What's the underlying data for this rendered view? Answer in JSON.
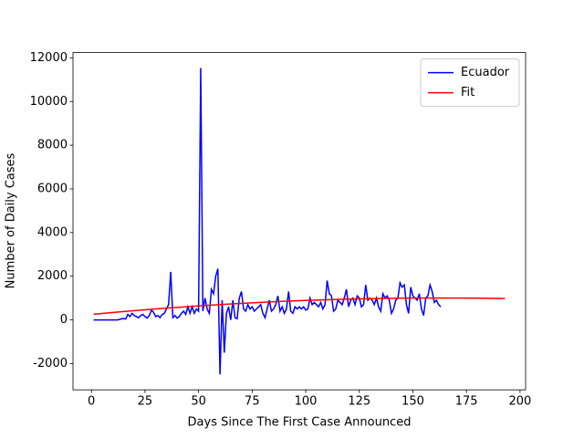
{
  "chart_data": {
    "type": "line",
    "xlabel": "Days Since The First Case Announced",
    "ylabel": "Number of Daily Cases",
    "xlim": [
      -8.6,
      202.6
    ],
    "ylim": [
      -3202,
      12242
    ],
    "xticks": [
      0,
      25,
      50,
      75,
      100,
      125,
      150,
      175,
      200
    ],
    "yticks": [
      -2000,
      0,
      2000,
      4000,
      6000,
      8000,
      10000,
      12000
    ],
    "legend": "upper right",
    "series": [
      {
        "name": "Ecuador",
        "color": "#0000ff",
        "x": [
          1,
          2,
          3,
          4,
          5,
          6,
          7,
          8,
          9,
          10,
          11,
          12,
          13,
          14,
          15,
          16,
          17,
          18,
          19,
          20,
          21,
          22,
          23,
          24,
          25,
          26,
          27,
          28,
          29,
          30,
          31,
          32,
          33,
          34,
          35,
          36,
          37,
          38,
          39,
          40,
          41,
          42,
          43,
          44,
          45,
          46,
          47,
          48,
          49,
          50,
          51,
          52,
          53,
          54,
          55,
          56,
          57,
          58,
          59,
          60,
          61,
          62,
          63,
          64,
          65,
          66,
          67,
          68,
          69,
          70,
          71,
          72,
          73,
          74,
          75,
          76,
          77,
          78,
          79,
          80,
          81,
          82,
          83,
          84,
          85,
          86,
          87,
          88,
          89,
          90,
          91,
          92,
          93,
          94,
          95,
          96,
          97,
          98,
          99,
          100,
          101,
          102,
          103,
          104,
          105,
          106,
          107,
          108,
          109,
          110,
          111,
          112,
          113,
          114,
          115,
          116,
          117,
          118,
          119,
          120,
          121,
          122,
          123,
          124,
          125,
          126,
          127,
          128,
          129,
          130,
          131,
          132,
          133,
          134,
          135,
          136,
          137,
          138,
          139,
          140,
          141,
          142,
          143,
          144,
          145,
          146,
          147,
          148,
          149,
          150,
          151,
          152,
          153,
          154,
          155,
          156,
          157,
          158,
          159,
          160,
          161,
          162,
          163
        ],
        "values": [
          0,
          0,
          0,
          0,
          0,
          0,
          0,
          0,
          0,
          0,
          0,
          0,
          20,
          50,
          60,
          40,
          250,
          150,
          300,
          200,
          150,
          100,
          200,
          250,
          150,
          80,
          200,
          450,
          350,
          150,
          200,
          100,
          250,
          300,
          500,
          700,
          2200,
          100,
          200,
          80,
          150,
          300,
          400,
          250,
          600,
          300,
          600,
          300,
          500,
          400,
          11536,
          400,
          1000,
          500,
          300,
          1400,
          1200,
          2000,
          2343,
          -2500,
          900,
          -1500,
          300,
          600,
          0,
          900,
          100,
          50,
          1000,
          1300,
          500,
          400,
          700,
          500,
          600,
          400,
          500,
          600,
          700,
          300,
          100,
          500,
          900,
          400,
          500,
          700,
          1100,
          400,
          600,
          300,
          500,
          1300,
          400,
          300,
          600,
          500,
          600,
          500,
          600,
          450,
          500,
          1000,
          700,
          800,
          700,
          600,
          800,
          500,
          700,
          1800,
          1200,
          1100,
          400,
          500,
          900,
          800,
          700,
          1000,
          1400,
          600,
          900,
          1000,
          700,
          1100,
          1000,
          600,
          700,
          1600,
          900,
          1000,
          900,
          700,
          1000,
          600,
          400,
          1200,
          1000,
          1100,
          900,
          300,
          500,
          900,
          1000,
          1700,
          1500,
          1600,
          700,
          300,
          1500,
          1100,
          1000,
          900,
          1200,
          500,
          200,
          1000,
          1100,
          1600,
          1300,
          800,
          900,
          700,
          600
        ]
      },
      {
        "name": "Fit",
        "color": "#ff0000",
        "x": [
          1,
          9,
          17,
          25,
          33,
          41,
          49,
          57,
          65,
          73,
          81,
          89,
          97,
          105,
          113,
          121,
          129,
          137,
          145,
          153,
          161,
          169,
          177,
          185,
          193
        ],
        "values": [
          259,
          330,
          398,
          462,
          523,
          580,
          634,
          684,
          730,
          773,
          812,
          848,
          880,
          908,
          933,
          954,
          971,
          985,
          995,
          1001,
          1003,
          1002,
          997,
          989,
          977
        ]
      }
    ]
  }
}
